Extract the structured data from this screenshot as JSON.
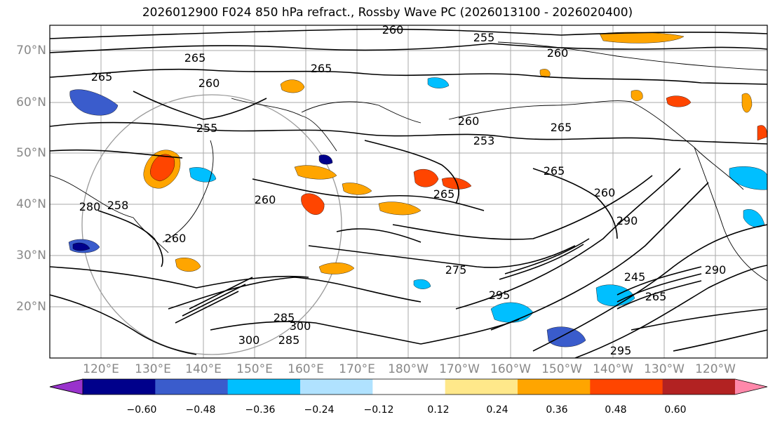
{
  "title": "2026012900 F024 850 hPa refract., Rossby Wave PC (2026013100 - 2026020400)",
  "axes": {
    "lat_labels": [
      "70°N",
      "60°N",
      "50°N",
      "40°N",
      "30°N",
      "20°N"
    ],
    "lon_labels": [
      "120°E",
      "130°E",
      "140°E",
      "150°E",
      "160°E",
      "170°E",
      "180°W",
      "170°W",
      "160°W",
      "150°W",
      "140°W",
      "130°W",
      "120°W"
    ]
  },
  "colorbar": {
    "ticks": [
      "−0.60",
      "−0.48",
      "−0.36",
      "−0.24",
      "−0.12",
      "0.12",
      "0.24",
      "0.36",
      "0.48",
      "0.60"
    ],
    "colors": [
      "#9932cc",
      "#00008b",
      "#3a5ccc",
      "#00bfff",
      "#b0e2ff",
      "#ffffff",
      "#ffe88a",
      "#ffa500",
      "#ff4500",
      "#b22222",
      "#ff88aa"
    ]
  },
  "contour_labels": [
    "260",
    "255",
    "260",
    "265",
    "265",
    "265",
    "260",
    "260",
    "255",
    "253",
    "265",
    "265",
    "260",
    "265",
    "258",
    "260",
    "260",
    "280",
    "275",
    "295",
    "290",
    "285",
    "300",
    "300",
    "295",
    "245",
    "265",
    "290",
    "285"
  ]
}
